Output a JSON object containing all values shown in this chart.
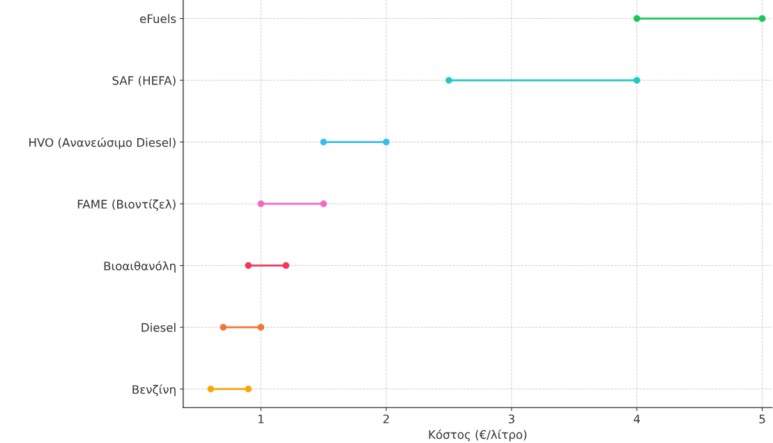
{
  "chart_data": {
    "type": "bar",
    "orientation": "horizontal",
    "xlabel": "Κόστος (€/λίτρο)",
    "categories": [
      "eFuels",
      "SAF (HEFA)",
      "HVO (Ανανεώσιμο Diesel)",
      "FAME (Βιοντίζελ)",
      "Βιοαιθανόλη",
      "Diesel",
      "Βενζίνη"
    ],
    "series": [
      {
        "base": [
          4.0,
          2.5,
          1.5,
          1.0,
          0.9,
          0.7,
          0.6
        ],
        "values": [
          1.0,
          1.5,
          0.5,
          0.5,
          0.3,
          0.3,
          0.3
        ],
        "colors": [
          "#1dc45c",
          "#20c9c4",
          "#3bbcf0",
          "#f06cc4",
          "#f53558",
          "#f27634",
          "#f7a80d"
        ]
      },
      {
        "type": "scatter",
        "values": [
          4.0,
          2.5,
          1.5,
          1.0,
          0.9,
          0.7,
          0.6
        ],
        "colors": [
          "#1dc45c",
          "#20c9c4",
          "#3bbcf0",
          "#f06cc4",
          "#f53558",
          "#f27634",
          "#f7a80d"
        ]
      },
      {
        "type": "scatter",
        "values": [
          5.0,
          4.0,
          2.0,
          1.5,
          1.2,
          1.0,
          0.9
        ],
        "colors": [
          "#1dc45c",
          "#20c9c4",
          "#3bbcf0",
          "#f06cc4",
          "#f53558",
          "#f27634",
          "#f7a80d"
        ]
      }
    ],
    "marker": "circle",
    "grid": true,
    "xlim": [
      0.38,
      5.08
    ],
    "xticks": [
      1,
      2,
      3,
      4,
      5
    ]
  }
}
